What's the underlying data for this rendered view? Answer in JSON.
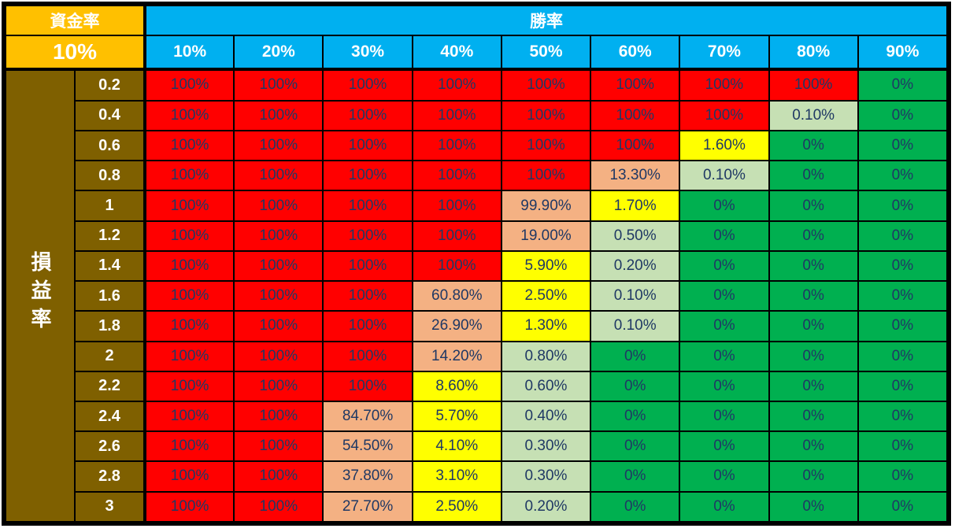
{
  "header": {
    "capital_rate_label": "資金率",
    "capital_rate_value": "10%",
    "win_rate_label": "勝率",
    "profit_loss_label": "損益率"
  },
  "colors": {
    "orange": "#FFC000",
    "cyan": "#00B0F0",
    "olive": "#7F6000",
    "red": "#FF0000",
    "salmon": "#F4B183",
    "yellow": "#FFFF00",
    "light_green": "#C6E0B4",
    "green": "#00B050",
    "cell_text": "#1F3864",
    "header_text": "#FFFFFF",
    "border": "#000000"
  },
  "chart_data": {
    "type": "heatmap",
    "x_axis_label": "勝率",
    "y_axis_label": "損益率",
    "corner_label": "資金率",
    "corner_value": "10%",
    "columns": [
      "10%",
      "20%",
      "30%",
      "40%",
      "50%",
      "60%",
      "70%",
      "80%",
      "90%"
    ],
    "color_scale_note": {
      "red": "100%",
      "salmon": ">=10%",
      "yellow": "1%-10%",
      "light_green": "0%-1%",
      "green": "0%"
    },
    "rows": [
      {
        "label": "0.2",
        "values": [
          "100%",
          "100%",
          "100%",
          "100%",
          "100%",
          "100%",
          "100%",
          "100%",
          "0%"
        ]
      },
      {
        "label": "0.4",
        "values": [
          "100%",
          "100%",
          "100%",
          "100%",
          "100%",
          "100%",
          "100%",
          "0.10%",
          "0%"
        ]
      },
      {
        "label": "0.6",
        "values": [
          "100%",
          "100%",
          "100%",
          "100%",
          "100%",
          "100%",
          "1.60%",
          "0%",
          "0%"
        ]
      },
      {
        "label": "0.8",
        "values": [
          "100%",
          "100%",
          "100%",
          "100%",
          "100%",
          "13.30%",
          "0.10%",
          "0%",
          "0%"
        ]
      },
      {
        "label": "1",
        "values": [
          "100%",
          "100%",
          "100%",
          "100%",
          "99.90%",
          "1.70%",
          "0%",
          "0%",
          "0%"
        ]
      },
      {
        "label": "1.2",
        "values": [
          "100%",
          "100%",
          "100%",
          "100%",
          "19.00%",
          "0.50%",
          "0%",
          "0%",
          "0%"
        ]
      },
      {
        "label": "1.4",
        "values": [
          "100%",
          "100%",
          "100%",
          "100%",
          "5.90%",
          "0.20%",
          "0%",
          "0%",
          "0%"
        ]
      },
      {
        "label": "1.6",
        "values": [
          "100%",
          "100%",
          "100%",
          "60.80%",
          "2.50%",
          "0.10%",
          "0%",
          "0%",
          "0%"
        ]
      },
      {
        "label": "1.8",
        "values": [
          "100%",
          "100%",
          "100%",
          "26.90%",
          "1.30%",
          "0.10%",
          "0%",
          "0%",
          "0%"
        ]
      },
      {
        "label": "2",
        "values": [
          "100%",
          "100%",
          "100%",
          "14.20%",
          "0.80%",
          "0%",
          "0%",
          "0%",
          "0%"
        ]
      },
      {
        "label": "2.2",
        "values": [
          "100%",
          "100%",
          "100%",
          "8.60%",
          "0.60%",
          "0%",
          "0%",
          "0%",
          "0%"
        ]
      },
      {
        "label": "2.4",
        "values": [
          "100%",
          "100%",
          "84.70%",
          "5.70%",
          "0.40%",
          "0%",
          "0%",
          "0%",
          "0%"
        ]
      },
      {
        "label": "2.6",
        "values": [
          "100%",
          "100%",
          "54.50%",
          "4.10%",
          "0.30%",
          "0%",
          "0%",
          "0%",
          "0%"
        ]
      },
      {
        "label": "2.8",
        "values": [
          "100%",
          "100%",
          "37.80%",
          "3.10%",
          "0.30%",
          "0%",
          "0%",
          "0%",
          "0%"
        ]
      },
      {
        "label": "3",
        "values": [
          "100%",
          "100%",
          "27.70%",
          "2.50%",
          "0.20%",
          "0%",
          "0%",
          "0%",
          "0%"
        ]
      }
    ]
  }
}
